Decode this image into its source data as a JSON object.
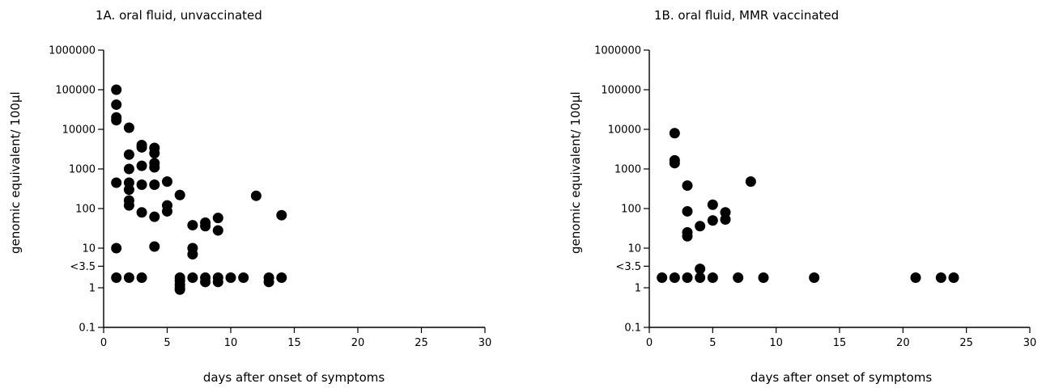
{
  "chart_data": [
    {
      "type": "scatter",
      "title": "1A. oral fluid, unvaccinated",
      "xlabel": "days after onset of symptoms",
      "ylabel": "genomic equivalent/ 100µl",
      "xlim": [
        0,
        30
      ],
      "ylim": [
        0.1,
        1000000
      ],
      "yscale": "log",
      "xticks": [
        "0",
        "5",
        "10",
        "15",
        "20",
        "25",
        "30"
      ],
      "yticks": [
        {
          "value": 0.1,
          "label": "0.1"
        },
        {
          "value": 1,
          "label": "1"
        },
        {
          "value": 3.5,
          "label": "<3.5"
        },
        {
          "value": 10,
          "label": "10"
        },
        {
          "value": 100,
          "label": "100"
        },
        {
          "value": 1000,
          "label": "1000"
        },
        {
          "value": 10000,
          "label": "10000"
        },
        {
          "value": 100000,
          "label": "100000"
        },
        {
          "value": 1000000,
          "label": "1000000"
        }
      ],
      "grid": false,
      "marker_color": "#000000",
      "points": [
        [
          1,
          100000
        ],
        [
          1,
          42000
        ],
        [
          1,
          20000
        ],
        [
          1,
          17000
        ],
        [
          1,
          450
        ],
        [
          1,
          10
        ],
        [
          1,
          1.8
        ],
        [
          2,
          11000
        ],
        [
          2,
          2300
        ],
        [
          2,
          1000
        ],
        [
          2,
          450
        ],
        [
          2,
          300
        ],
        [
          2,
          160
        ],
        [
          2,
          120
        ],
        [
          2,
          1.8
        ],
        [
          3,
          4000
        ],
        [
          3,
          3500
        ],
        [
          3,
          1200
        ],
        [
          3,
          400
        ],
        [
          3,
          80
        ],
        [
          3,
          1.8
        ],
        [
          4,
          3400
        ],
        [
          4,
          2500
        ],
        [
          4,
          1400
        ],
        [
          4,
          1100
        ],
        [
          4,
          400
        ],
        [
          4,
          62
        ],
        [
          4,
          11
        ],
        [
          5,
          480
        ],
        [
          5,
          120
        ],
        [
          5,
          85
        ],
        [
          6,
          220
        ],
        [
          6,
          1.8
        ],
        [
          6,
          1.5
        ],
        [
          6,
          1.2
        ],
        [
          6,
          1.0
        ],
        [
          6,
          0.9
        ],
        [
          7,
          38
        ],
        [
          7,
          10
        ],
        [
          7,
          7
        ],
        [
          7,
          1.8
        ],
        [
          8,
          44
        ],
        [
          8,
          36
        ],
        [
          8,
          1.8
        ],
        [
          8,
          1.4
        ],
        [
          9,
          58
        ],
        [
          9,
          28
        ],
        [
          9,
          1.8
        ],
        [
          9,
          1.4
        ],
        [
          10,
          1.8
        ],
        [
          11,
          1.8
        ],
        [
          12,
          210
        ],
        [
          13,
          1.8
        ],
        [
          13,
          1.4
        ],
        [
          14,
          68
        ],
        [
          14,
          1.8
        ]
      ]
    },
    {
      "type": "scatter",
      "title": "1B. oral fluid, MMR vaccinated",
      "xlabel": "days after onset of symptoms",
      "ylabel": "genomic equivalent/ 100µl",
      "xlim": [
        0,
        30
      ],
      "ylim": [
        0.1,
        1000000
      ],
      "yscale": "log",
      "xticks": [
        "0",
        "5",
        "10",
        "15",
        "20",
        "25",
        "30"
      ],
      "yticks": [
        {
          "value": 0.1,
          "label": "0.1"
        },
        {
          "value": 1,
          "label": "1"
        },
        {
          "value": 3.5,
          "label": "<3.5"
        },
        {
          "value": 10,
          "label": "10"
        },
        {
          "value": 100,
          "label": "100"
        },
        {
          "value": 1000,
          "label": "1000"
        },
        {
          "value": 10000,
          "label": "10000"
        },
        {
          "value": 100000,
          "label": "100000"
        },
        {
          "value": 1000000,
          "label": "1000000"
        }
      ],
      "grid": false,
      "marker_color": "#000000",
      "points": [
        [
          1,
          1.8
        ],
        [
          2,
          8000
        ],
        [
          2,
          1650
        ],
        [
          2,
          1400
        ],
        [
          2,
          1.8
        ],
        [
          3,
          380
        ],
        [
          3,
          85
        ],
        [
          3,
          25
        ],
        [
          3,
          20
        ],
        [
          3,
          1.8
        ],
        [
          4,
          36
        ],
        [
          4,
          3.0
        ],
        [
          4,
          1.8
        ],
        [
          5,
          125
        ],
        [
          5,
          50
        ],
        [
          5,
          1.8
        ],
        [
          6,
          80
        ],
        [
          6,
          53
        ],
        [
          7,
          1.8
        ],
        [
          8,
          480
        ],
        [
          9,
          1.8
        ],
        [
          13,
          1.8
        ],
        [
          21,
          1.8
        ],
        [
          23,
          1.8
        ],
        [
          24,
          1.8
        ]
      ]
    }
  ]
}
